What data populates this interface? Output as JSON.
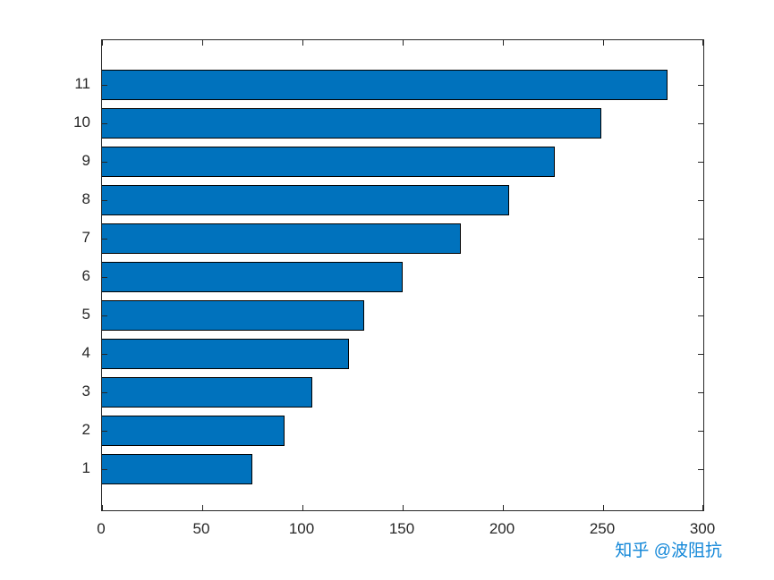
{
  "chart_data": {
    "type": "bar",
    "orientation": "horizontal",
    "title": "",
    "xlabel": "",
    "ylabel": "",
    "categories": [
      "1",
      "2",
      "3",
      "4",
      "5",
      "6",
      "7",
      "8",
      "9",
      "10",
      "11"
    ],
    "values": [
      75,
      91,
      105,
      123,
      131,
      150,
      179,
      203,
      226,
      249,
      282
    ],
    "xlim": [
      0,
      300
    ],
    "xticks": [
      0,
      50,
      100,
      150,
      200,
      250,
      300
    ],
    "yticks": [
      "1",
      "2",
      "3",
      "4",
      "5",
      "6",
      "7",
      "8",
      "9",
      "10",
      "11"
    ],
    "grid": false,
    "legend": null,
    "bar_color": "#0072BD",
    "bar_edge_color": "#000000",
    "axis_color": "#262626"
  },
  "watermark": {
    "text": "知乎 @波阻抗",
    "color": "#1287d8"
  }
}
